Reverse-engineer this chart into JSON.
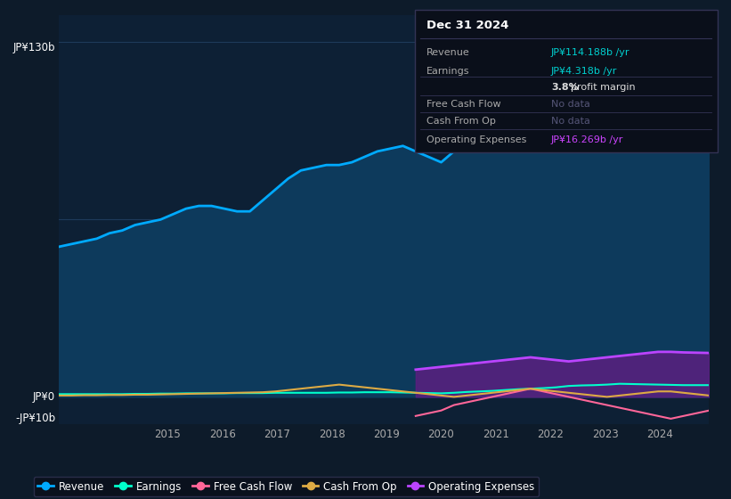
{
  "bg_color": "#0d1b2a",
  "plot_bg_color": "#0d2035",
  "grid_color": "#1e3a5a",
  "title_text": "Dec 31 2024",
  "info_box_rows": [
    {
      "label": "Revenue",
      "value": "JP¥114.188b /yr",
      "value_color": "#00d0d0",
      "label_color": "#aaaaaa"
    },
    {
      "label": "Earnings",
      "value": "JP¥4.318b /yr",
      "value_color": "#00d0d0",
      "label_color": "#aaaaaa"
    },
    {
      "label": "",
      "value": "3.8% profit margin",
      "value_color": "#dddddd",
      "label_color": "#aaaaaa"
    },
    {
      "label": "Free Cash Flow",
      "value": "No data",
      "value_color": "#555577",
      "label_color": "#aaaaaa"
    },
    {
      "label": "Cash From Op",
      "value": "No data",
      "value_color": "#555577",
      "label_color": "#aaaaaa"
    },
    {
      "label": "Operating Expenses",
      "value": "JP¥16.269b /yr",
      "value_color": "#cc44ff",
      "label_color": "#aaaaaa"
    }
  ],
  "ylim": [
    -10,
    140
  ],
  "revenue_color": "#00aaff",
  "revenue_fill": "#0d3a5c",
  "earnings_color": "#00ffcc",
  "fcf_color": "#ff6699",
  "cash_from_op_color": "#ddaa44",
  "opex_color": "#bb44ff",
  "opex_fill": "#5a2080",
  "legend_items": [
    {
      "label": "Revenue",
      "color": "#00aaff"
    },
    {
      "label": "Earnings",
      "color": "#00ffcc"
    },
    {
      "label": "Free Cash Flow",
      "color": "#ff6699"
    },
    {
      "label": "Cash From Op",
      "color": "#ddaa44"
    },
    {
      "label": "Operating Expenses",
      "color": "#bb44ff"
    }
  ]
}
